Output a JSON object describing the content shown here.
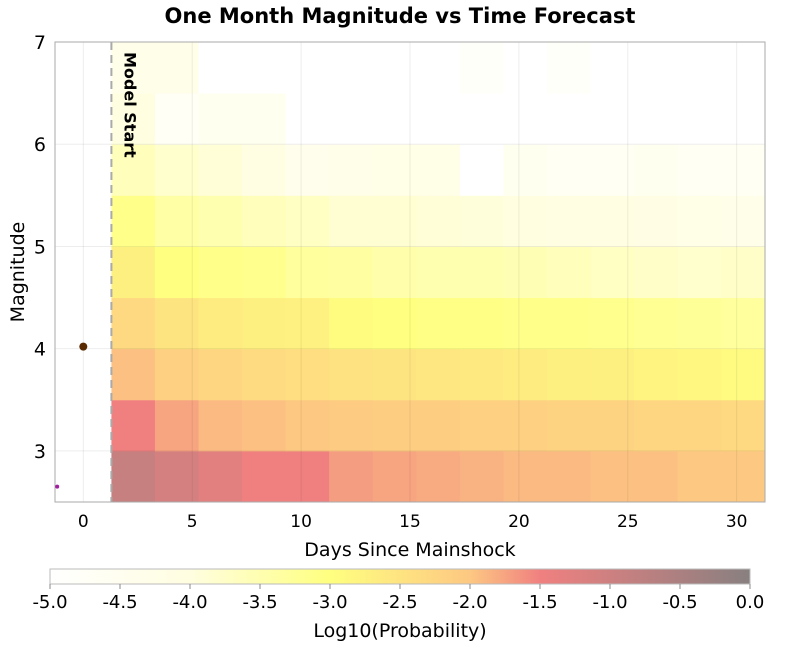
{
  "chart_data": {
    "type": "heatmap",
    "title": "One Month Magnitude vs Time Forecast",
    "xlabel": "Days Since Mainshock",
    "ylabel": "Magnitude",
    "xlim": [
      -1.3,
      31.3
    ],
    "ylim": [
      2.5,
      7.0
    ],
    "xticks": [
      "0",
      "5",
      "10",
      "15",
      "20",
      "25",
      "30"
    ],
    "xtick_values": [
      0,
      5,
      10,
      15,
      20,
      25,
      30
    ],
    "yticks": [
      "3",
      "4",
      "5",
      "6",
      "7"
    ],
    "ytick_values": [
      3,
      4,
      5,
      6,
      7
    ],
    "grid": true,
    "x_bin_start": 1.29,
    "x_bin_width": 2,
    "y_bin_edges": [
      2.5,
      3.0,
      3.5,
      4.0,
      4.5,
      5.0,
      5.5,
      6.0,
      6.5,
      7.0
    ],
    "values_log10_probability_by_row_bottom_to_top": [
      [
        -0.9,
        -1.1,
        -1.3,
        -1.5,
        -1.5,
        -1.7,
        -1.75,
        -1.8,
        -1.85,
        -1.9,
        -1.9,
        -1.95,
        -1.95,
        -2.0,
        -2.0
      ],
      [
        -1.5,
        -1.75,
        -1.9,
        -1.95,
        -2.0,
        -2.05,
        -2.1,
        -2.1,
        -2.15,
        -2.15,
        -2.2,
        -2.2,
        -2.25,
        -2.25,
        -2.3
      ],
      [
        -1.95,
        -2.15,
        -2.25,
        -2.35,
        -2.4,
        -2.45,
        -2.5,
        -2.55,
        -2.6,
        -2.65,
        -2.7,
        -2.7,
        -2.8,
        -2.85,
        -2.9
      ],
      [
        -2.3,
        -2.5,
        -2.65,
        -2.7,
        -2.75,
        -2.95,
        -3.0,
        -3.05,
        -3.05,
        -3.1,
        -3.1,
        -3.15,
        -3.2,
        -3.25,
        -3.3
      ],
      [
        -2.7,
        -3.0,
        -3.1,
        -3.15,
        -3.3,
        -3.35,
        -3.45,
        -3.5,
        -3.5,
        -3.55,
        -3.6,
        -3.7,
        -3.75,
        -3.8,
        -3.75
      ],
      [
        -3.1,
        -3.4,
        -3.5,
        -3.6,
        -3.7,
        -3.85,
        -3.85,
        -3.9,
        -3.95,
        -4.0,
        -4.05,
        -4.1,
        -4.15,
        -4.2,
        -4.25
      ],
      [
        -3.6,
        -3.8,
        -3.9,
        -4.1,
        -4.4,
        -4.3,
        -4.2,
        -4.2,
        -5.0,
        -4.5,
        -4.6,
        -4.6,
        -4.5,
        -4.6,
        -4.6
      ],
      [
        -4.0,
        -4.7,
        -4.5,
        -4.5,
        -5.0,
        -5.0,
        -5.0,
        -5.0,
        -5.0,
        -5.0,
        -5.0,
        -5.0,
        -5.0,
        -5.0,
        -5.0
      ],
      [
        -4.3,
        -4.3,
        -5.0,
        -5.0,
        -5.0,
        -5.0,
        -5.0,
        -5.0,
        -4.8,
        -5.0,
        -4.8,
        -5.0,
        -5.0,
        -5.0,
        -5.0
      ]
    ],
    "points": [
      {
        "x": 0,
        "y": 4.02,
        "color": "#5a2a00"
      },
      {
        "x": -1.2,
        "y": 2.65,
        "color": "#a020a0"
      }
    ],
    "annotation": {
      "text": "Model Start",
      "x": 1.29
    },
    "colorbar": {
      "label": "Log10(Probability)",
      "range": [
        -5.0,
        0.0
      ],
      "ticks": [
        "-5.0",
        "-4.5",
        "-4.0",
        "-3.5",
        "-3.0",
        "-2.5",
        "-2.0",
        "-1.5",
        "-1.0",
        "-0.5",
        "0.0"
      ],
      "stops": [
        {
          "v": -5.0,
          "color": "#ffffff"
        },
        {
          "v": -4.0,
          "color": "#fffee0"
        },
        {
          "v": -3.0,
          "color": "#ffff80"
        },
        {
          "v": -2.0,
          "color": "#fdc882"
        },
        {
          "v": -1.5,
          "color": "#f08080"
        },
        {
          "v": 0.0,
          "color": "#888080"
        }
      ],
      "position": "bottom"
    }
  }
}
